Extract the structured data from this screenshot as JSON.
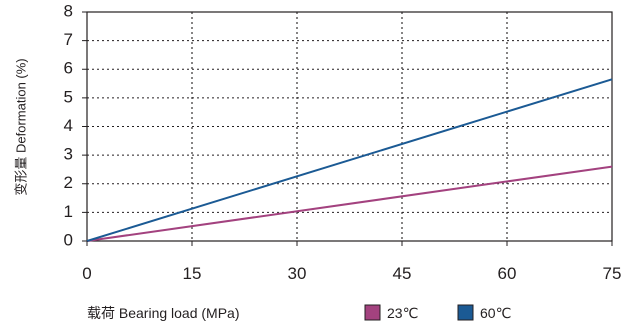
{
  "chart_data": {
    "type": "line",
    "xlabel": "载荷 Bearing load (MPa)",
    "ylabel": "变形量 Deformation (%)",
    "x_ticks": [
      0,
      15,
      30,
      45,
      60,
      75
    ],
    "y_ticks": [
      0,
      1,
      2,
      3,
      4,
      5,
      6,
      7,
      8
    ],
    "xlim": [
      0,
      75
    ],
    "ylim": [
      0,
      8
    ],
    "grid": "dotted",
    "legend_position": "bottom-right",
    "series": [
      {
        "name": "23℃",
        "color": "#a3427f",
        "x": [
          0,
          75
        ],
        "y": [
          0,
          2.6
        ]
      },
      {
        "name": "60℃",
        "color": "#1b5a94",
        "x": [
          0,
          75
        ],
        "y": [
          0,
          5.65
        ]
      }
    ]
  }
}
